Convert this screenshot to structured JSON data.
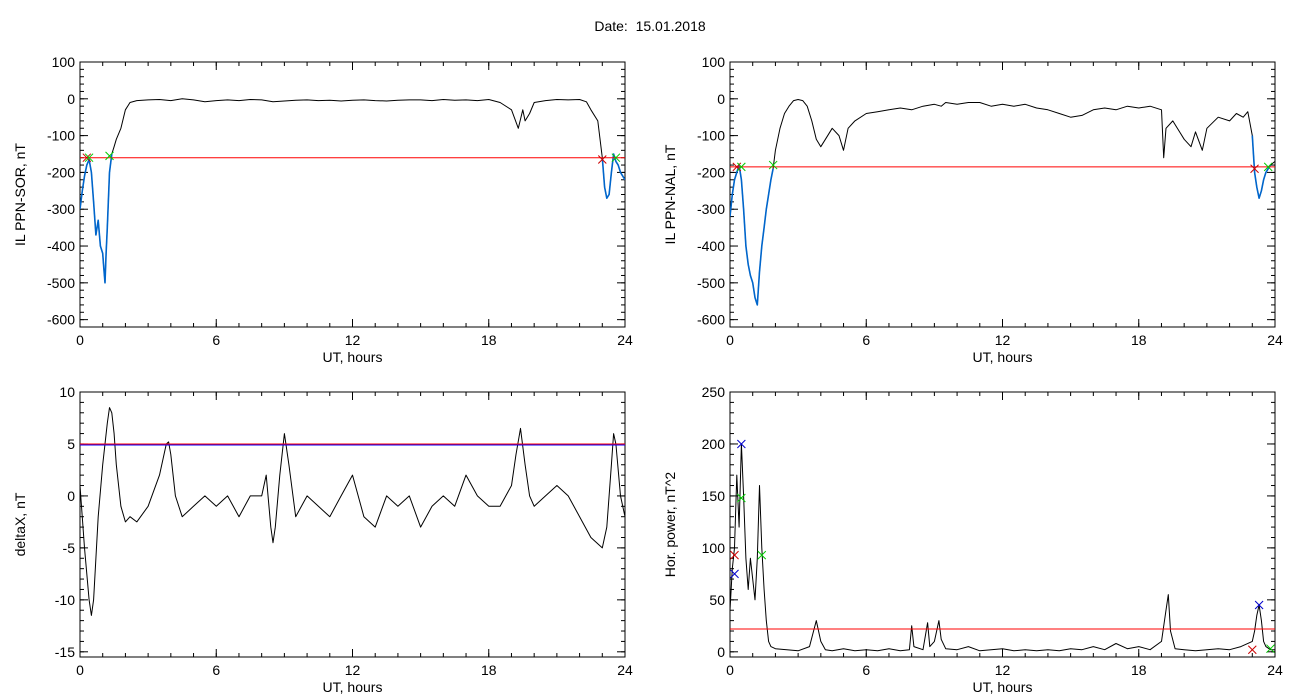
{
  "title": "Date:  15.01.2018",
  "colors": {
    "trace": "#000000",
    "threshold": "#ff0000",
    "threshold2": "#0000ff",
    "highlight": "#0066cc",
    "mark_red": "#cc0000",
    "mark_green": "#00cc00",
    "mark_blue": "#0000cc"
  },
  "chart_data": [
    {
      "type": "line",
      "ylabel": "IL PPN-SOR, nT",
      "xlabel": "UT, hours",
      "xlim": [
        0,
        24
      ],
      "ylim": [
        -620,
        100
      ],
      "xticks": [
        0,
        6,
        12,
        18,
        24
      ],
      "yticks": [
        -600,
        -500,
        -400,
        -300,
        -200,
        -100,
        0,
        100
      ],
      "threshold": -160,
      "series": [
        {
          "style": "trace",
          "x": [
            0,
            0.1,
            0.2,
            0.3,
            0.4,
            0.5,
            0.6,
            0.7,
            0.8,
            0.9,
            1.0,
            1.05,
            1.1,
            1.15,
            1.2,
            1.3,
            1.4,
            1.5,
            1.6,
            1.8,
            2.0,
            2.2,
            2.5,
            3,
            3.5,
            4,
            4.5,
            5,
            5.5,
            6,
            6.5,
            7,
            7.5,
            8,
            8.5,
            9,
            9.5,
            10,
            10.5,
            11,
            11.5,
            12,
            12.5,
            13,
            13.5,
            14,
            14.5,
            15,
            15.5,
            16,
            16.5,
            17,
            17.5,
            18,
            18.5,
            19,
            19.3,
            19.5,
            19.6,
            19.8,
            20,
            20.5,
            21,
            21.5,
            22,
            22.3,
            22.5,
            22.8,
            23,
            23.1,
            23.2,
            23.3,
            23.4,
            23.5,
            23.6,
            23.7,
            23.8,
            24
          ],
          "y": [
            -300,
            -250,
            -210,
            -180,
            -165,
            -200,
            -280,
            -370,
            -330,
            -400,
            -420,
            -460,
            -500,
            -420,
            -350,
            -200,
            -150,
            -130,
            -110,
            -80,
            -30,
            -10,
            -5,
            -3,
            -2,
            -5,
            0,
            -3,
            -8,
            -5,
            -3,
            -5,
            -2,
            -3,
            -8,
            -6,
            -4,
            -3,
            -5,
            -4,
            -6,
            -4,
            -3,
            -5,
            -6,
            -4,
            -3,
            -3,
            -5,
            -2,
            -4,
            -3,
            -5,
            -2,
            -10,
            -30,
            -80,
            -30,
            -60,
            -40,
            -10,
            -5,
            -2,
            -3,
            -2,
            -8,
            -30,
            -60,
            -160,
            -240,
            -270,
            -260,
            -200,
            -150,
            -170,
            -180,
            -200,
            -220
          ]
        },
        {
          "style": "highlight",
          "x": [
            0,
            0.1,
            0.2,
            0.3,
            0.4,
            0.5,
            0.6,
            0.7,
            0.8,
            0.9,
            1.0,
            1.05,
            1.1,
            1.15,
            1.2,
            1.3,
            1.4
          ],
          "y": [
            -300,
            -250,
            -210,
            -180,
            -165,
            -200,
            -280,
            -370,
            -330,
            -400,
            -420,
            -460,
            -500,
            -420,
            -350,
            -200,
            -150
          ]
        },
        {
          "style": "highlight",
          "x": [
            23,
            23.1,
            23.2,
            23.3,
            23.4,
            23.5,
            23.6,
            23.7,
            23.8,
            24
          ],
          "y": [
            -160,
            -240,
            -270,
            -260,
            -200,
            -150,
            -170,
            -180,
            -200,
            -220
          ]
        }
      ],
      "markers": [
        {
          "x": 0.3,
          "y": -160,
          "color": "mark_red"
        },
        {
          "x": 0.4,
          "y": -160,
          "color": "mark_green"
        },
        {
          "x": 1.3,
          "y": -155,
          "color": "mark_green"
        },
        {
          "x": 23.0,
          "y": -165,
          "color": "mark_red"
        },
        {
          "x": 23.6,
          "y": -160,
          "color": "mark_green"
        }
      ]
    },
    {
      "type": "line",
      "ylabel": "IL PPN-NAL, nT",
      "xlabel": "UT, hours",
      "xlim": [
        0,
        24
      ],
      "ylim": [
        -620,
        100
      ],
      "xticks": [
        0,
        6,
        12,
        18,
        24
      ],
      "yticks": [
        -600,
        -500,
        -400,
        -300,
        -200,
        -100,
        0,
        100
      ],
      "threshold": -185,
      "series": [
        {
          "style": "trace",
          "x": [
            0,
            0.1,
            0.2,
            0.3,
            0.4,
            0.5,
            0.6,
            0.7,
            0.8,
            0.9,
            1.0,
            1.1,
            1.2,
            1.3,
            1.4,
            1.5,
            1.6,
            1.7,
            1.8,
            1.9,
            2.0,
            2.2,
            2.4,
            2.6,
            2.8,
            3.0,
            3.2,
            3.4,
            3.6,
            3.8,
            4.0,
            4.2,
            4.5,
            4.8,
            5.0,
            5.2,
            5.5,
            6,
            6.5,
            7,
            7.5,
            8,
            8.5,
            9,
            9.3,
            9.5,
            10,
            10.5,
            11,
            11.5,
            12,
            12.5,
            13,
            13.5,
            14,
            14.5,
            15,
            15.5,
            16,
            16.5,
            17,
            17.5,
            18,
            18.5,
            19,
            19.1,
            19.2,
            19.5,
            19.8,
            20,
            20.3,
            20.5,
            20.8,
            21,
            21.5,
            22,
            22.3,
            22.6,
            22.8,
            23,
            23.1,
            23.2,
            23.3,
            23.4,
            23.5,
            23.6,
            23.8,
            24
          ],
          "y": [
            -320,
            -260,
            -220,
            -200,
            -180,
            -220,
            -300,
            -400,
            -450,
            -480,
            -500,
            -540,
            -560,
            -470,
            -400,
            -350,
            -300,
            -260,
            -220,
            -190,
            -140,
            -80,
            -40,
            -20,
            -5,
            -2,
            -5,
            -20,
            -60,
            -110,
            -130,
            -110,
            -80,
            -100,
            -140,
            -80,
            -60,
            -40,
            -35,
            -30,
            -25,
            -30,
            -20,
            -15,
            -20,
            -10,
            -15,
            -10,
            -10,
            -20,
            -15,
            -20,
            -15,
            -25,
            -30,
            -40,
            -50,
            -45,
            -30,
            -25,
            -30,
            -20,
            -25,
            -20,
            -30,
            -160,
            -80,
            -60,
            -90,
            -110,
            -130,
            -90,
            -140,
            -80,
            -50,
            -60,
            -40,
            -50,
            -35,
            -100,
            -200,
            -240,
            -270,
            -250,
            -220,
            -200,
            -180,
            -170
          ]
        },
        {
          "style": "highlight",
          "x": [
            0,
            0.1,
            0.2,
            0.3,
            0.4,
            0.5,
            0.6,
            0.7,
            0.8,
            0.9,
            1.0,
            1.1,
            1.2,
            1.3,
            1.4,
            1.5,
            1.6,
            1.7,
            1.8,
            1.9
          ],
          "y": [
            -320,
            -260,
            -220,
            -200,
            -180,
            -220,
            -300,
            -400,
            -450,
            -480,
            -500,
            -540,
            -560,
            -470,
            -400,
            -350,
            -300,
            -260,
            -220,
            -190
          ]
        },
        {
          "style": "highlight",
          "x": [
            23,
            23.1,
            23.2,
            23.3,
            23.4,
            23.5,
            23.6,
            23.8
          ],
          "y": [
            -100,
            -200,
            -240,
            -270,
            -250,
            -220,
            -200,
            -180
          ]
        }
      ],
      "markers": [
        {
          "x": 0.3,
          "y": -185,
          "color": "mark_red"
        },
        {
          "x": 0.5,
          "y": -185,
          "color": "mark_green"
        },
        {
          "x": 1.9,
          "y": -180,
          "color": "mark_green"
        },
        {
          "x": 23.1,
          "y": -190,
          "color": "mark_red"
        },
        {
          "x": 23.7,
          "y": -185,
          "color": "mark_green"
        }
      ]
    },
    {
      "type": "line",
      "ylabel": "deltaX, nT",
      "xlabel": "UT, hours",
      "xlim": [
        0,
        24
      ],
      "ylim": [
        -15.5,
        10
      ],
      "xticks": [
        0,
        6,
        12,
        18,
        24
      ],
      "yticks": [
        -15,
        -10,
        -5,
        0,
        5,
        10
      ],
      "threshold": 5,
      "threshold_style": "threshold2",
      "series": [
        {
          "style": "trace",
          "x": [
            0,
            0.2,
            0.4,
            0.5,
            0.6,
            0.7,
            0.8,
            1.0,
            1.2,
            1.3,
            1.4,
            1.5,
            1.6,
            1.8,
            2.0,
            2.2,
            2.5,
            3.0,
            3.5,
            3.8,
            3.9,
            4.0,
            4.2,
            4.5,
            5.0,
            5.5,
            6.0,
            6.5,
            7.0,
            7.5,
            8.0,
            8.2,
            8.4,
            8.5,
            8.6,
            8.8,
            9.0,
            9.2,
            9.5,
            10.0,
            10.5,
            11.0,
            11.5,
            12.0,
            12.5,
            13.0,
            13.5,
            14.0,
            14.5,
            15.0,
            15.5,
            16.0,
            16.5,
            17.0,
            17.5,
            18.0,
            18.5,
            19.0,
            19.2,
            19.4,
            19.6,
            19.8,
            20.0,
            20.5,
            21.0,
            21.5,
            22.0,
            22.5,
            23.0,
            23.2,
            23.4,
            23.5,
            23.6,
            23.8,
            24
          ],
          "y": [
            1,
            -5,
            -10,
            -11.5,
            -10,
            -6,
            -2,
            3,
            7,
            8.5,
            8,
            6,
            3,
            -1,
            -2.5,
            -2,
            -2.5,
            -1,
            2,
            5,
            5.2,
            4,
            0,
            -2,
            -1,
            0,
            -1,
            0,
            -2,
            0,
            0,
            2,
            -3,
            -4.5,
            -3,
            2,
            6,
            3,
            -2,
            0,
            -1,
            -2,
            0,
            2,
            -2,
            -3,
            0,
            -1,
            0,
            -3,
            -1,
            0,
            -1,
            2,
            0,
            -1,
            -1,
            1,
            4,
            6.5,
            3,
            0,
            -1,
            0,
            1,
            0,
            -2,
            -4,
            -5,
            -3,
            3,
            6,
            5,
            0,
            -2
          ]
        }
      ],
      "markers": []
    },
    {
      "type": "line",
      "ylabel": "Hor. power, nT^2",
      "xlabel": "UT, hours",
      "xlim": [
        0,
        24
      ],
      "ylim": [
        -5,
        250
      ],
      "xticks": [
        0,
        6,
        12,
        18,
        24
      ],
      "yticks": [
        0,
        50,
        100,
        150,
        200,
        250
      ],
      "threshold": 22,
      "series": [
        {
          "style": "trace",
          "x": [
            0,
            0.1,
            0.2,
            0.3,
            0.4,
            0.5,
            0.6,
            0.7,
            0.8,
            0.9,
            1.0,
            1.1,
            1.2,
            1.3,
            1.4,
            1.5,
            1.6,
            1.7,
            1.8,
            2.0,
            2.5,
            3.0,
            3.5,
            3.8,
            4.0,
            4.2,
            4.5,
            5.0,
            5.5,
            6.0,
            6.5,
            7.0,
            7.5,
            7.9,
            8.0,
            8.1,
            8.5,
            8.7,
            8.8,
            9.0,
            9.2,
            9.3,
            9.5,
            10,
            10.5,
            11,
            11.5,
            12,
            12.5,
            13,
            13.5,
            14,
            14.5,
            15,
            15.5,
            16,
            16.5,
            17,
            17.5,
            18,
            18.5,
            19,
            19.2,
            19.3,
            19.4,
            19.6,
            20,
            20.5,
            21,
            21.5,
            22,
            22.5,
            23,
            23.1,
            23.2,
            23.3,
            23.4,
            23.5,
            23.6,
            23.8,
            24
          ],
          "y": [
            40,
            80,
            100,
            170,
            120,
            200,
            150,
            90,
            60,
            90,
            70,
            50,
            90,
            160,
            100,
            60,
            30,
            10,
            5,
            3,
            2,
            1,
            5,
            30,
            10,
            2,
            1,
            3,
            1,
            2,
            1,
            3,
            1,
            2,
            25,
            5,
            2,
            28,
            5,
            10,
            30,
            12,
            3,
            2,
            5,
            1,
            2,
            3,
            1,
            2,
            1,
            2,
            1,
            3,
            2,
            5,
            2,
            8,
            3,
            5,
            2,
            10,
            40,
            55,
            20,
            3,
            2,
            1,
            2,
            3,
            2,
            5,
            10,
            20,
            35,
            45,
            30,
            10,
            5,
            2,
            2
          ]
        }
      ],
      "markers": [
        {
          "x": 0.2,
          "y": 93,
          "color": "mark_red"
        },
        {
          "x": 0.2,
          "y": 75,
          "color": "mark_blue"
        },
        {
          "x": 0.5,
          "y": 200,
          "color": "mark_blue"
        },
        {
          "x": 0.5,
          "y": 148,
          "color": "mark_green"
        },
        {
          "x": 1.4,
          "y": 93,
          "color": "mark_green"
        },
        {
          "x": 23.3,
          "y": 45,
          "color": "mark_blue"
        },
        {
          "x": 23.0,
          "y": 2,
          "color": "mark_red"
        },
        {
          "x": 23.8,
          "y": 3,
          "color": "mark_green"
        }
      ]
    }
  ]
}
